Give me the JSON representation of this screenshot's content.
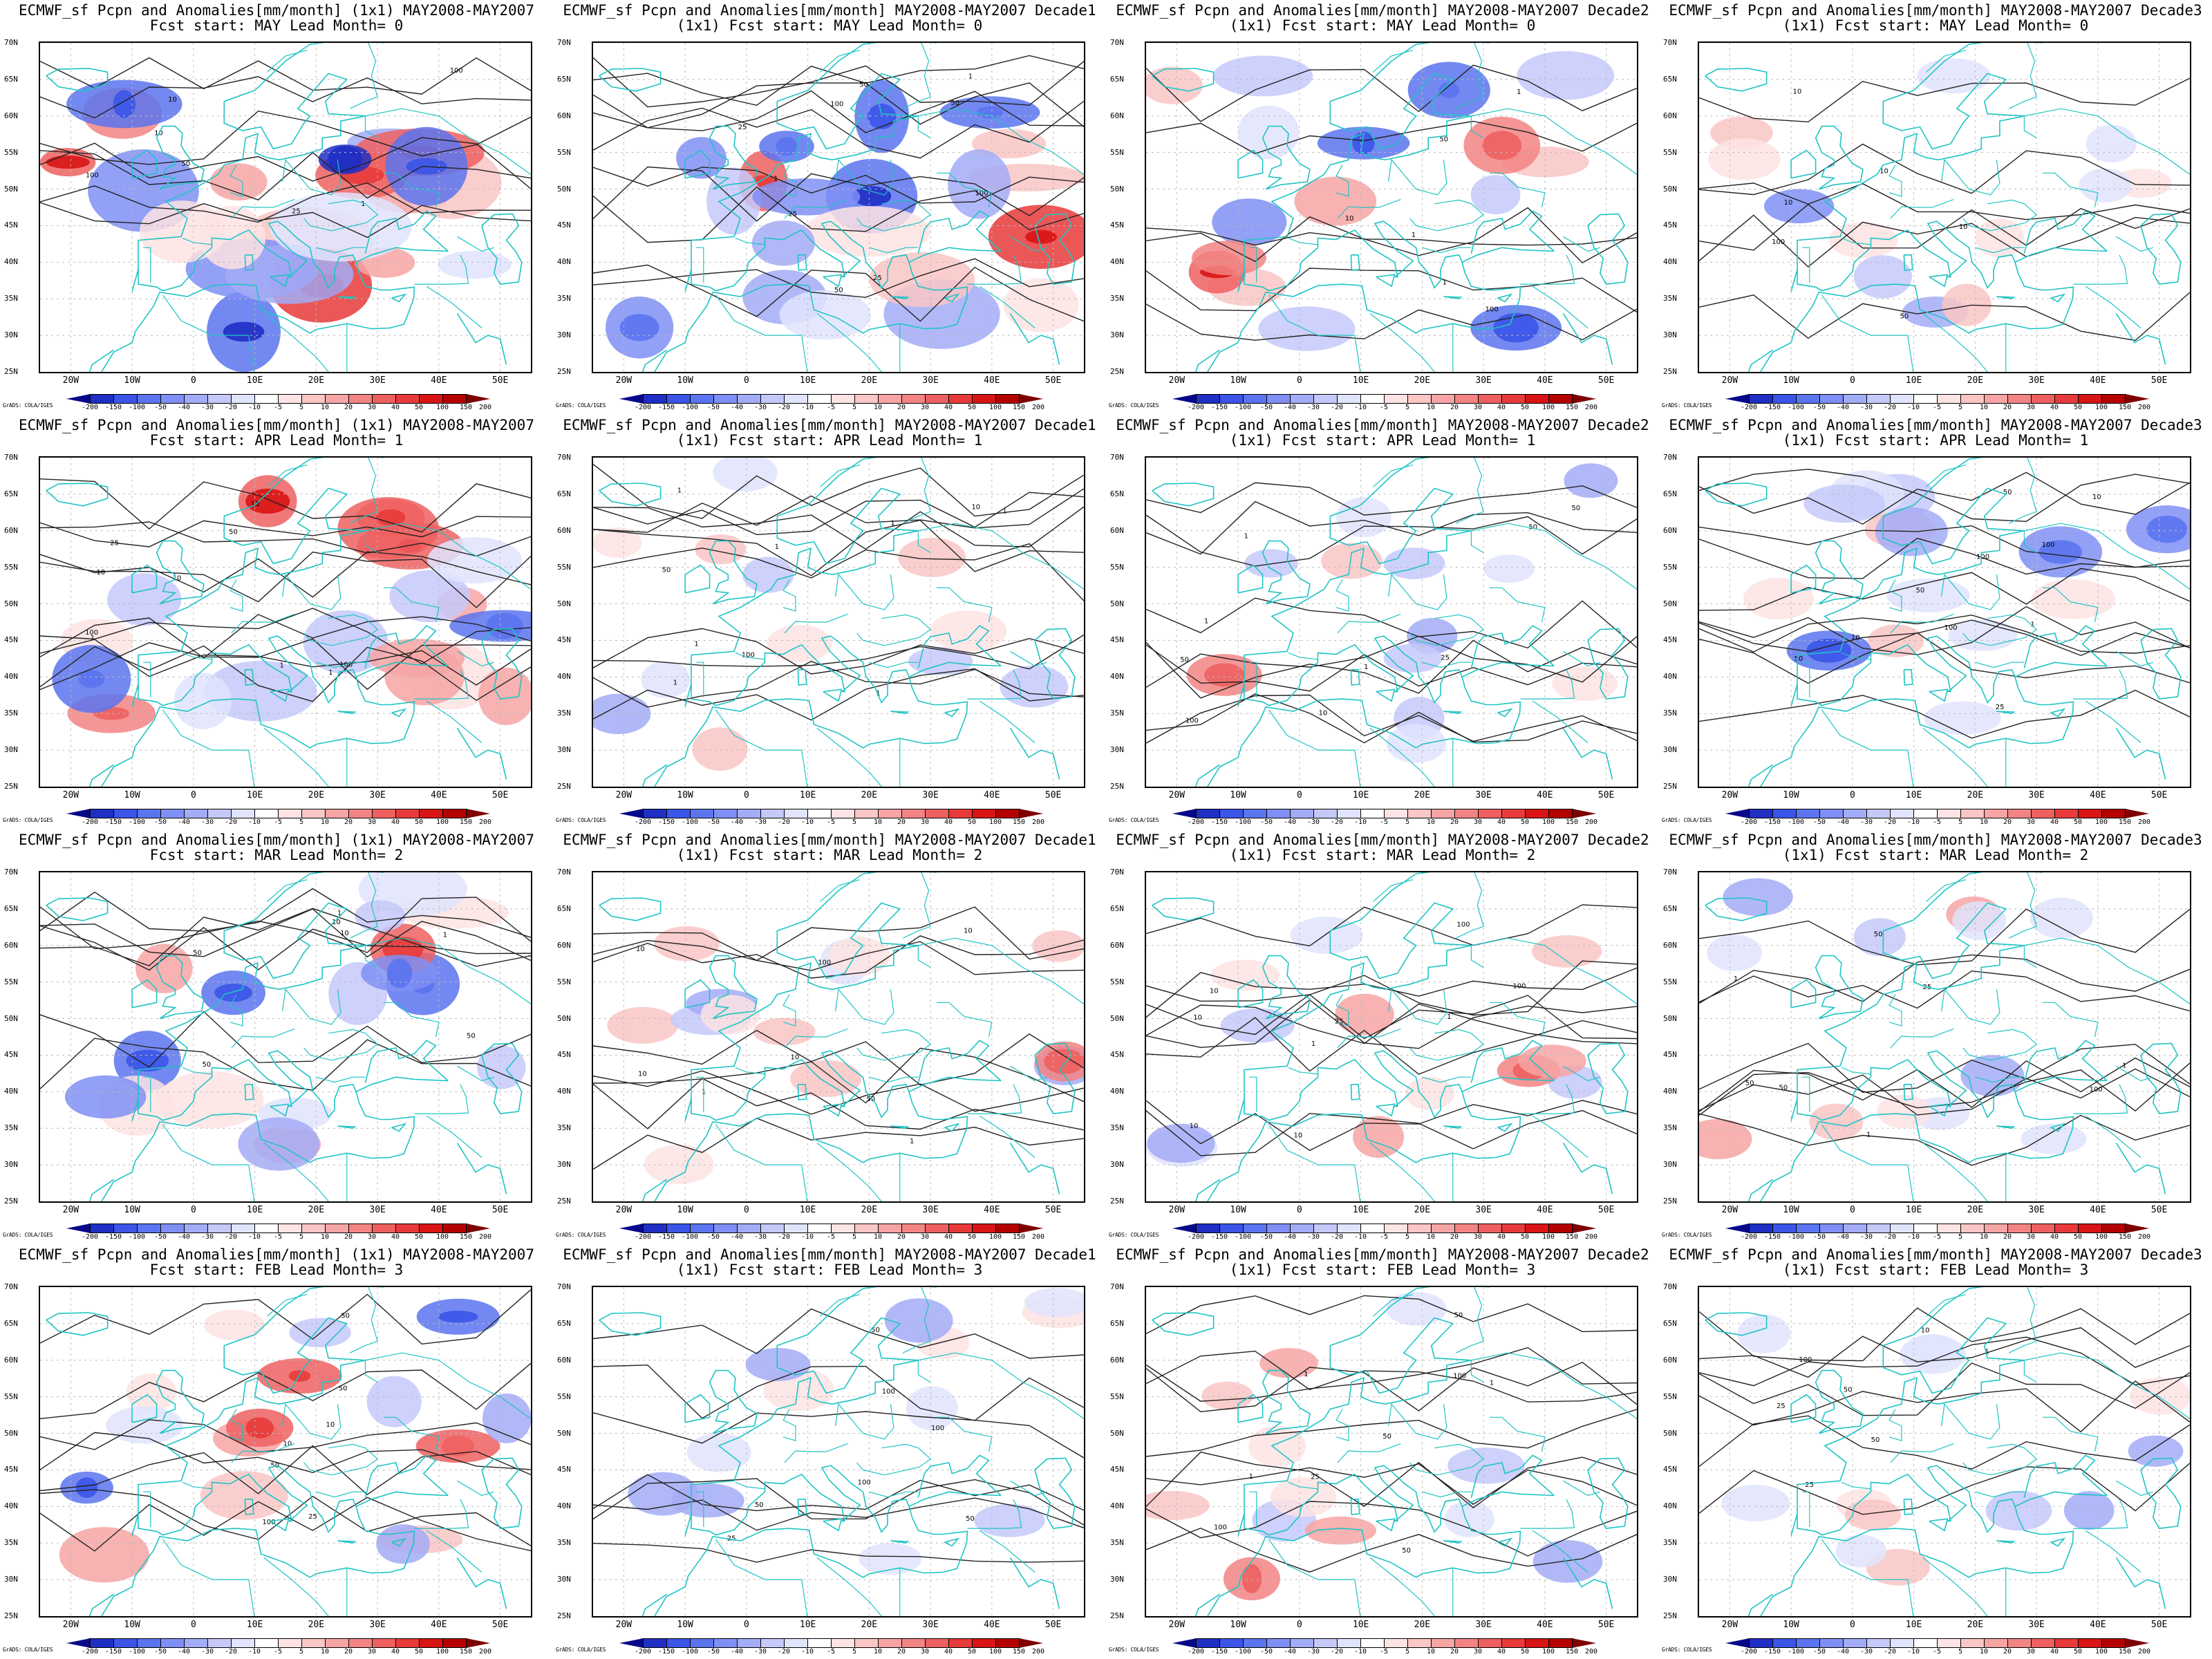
{
  "figure": {
    "credit": "GrADS: COLA/IGES",
    "colorbar_levels": [
      "-200",
      "-150",
      "-100",
      "-50",
      "-40",
      "-30",
      "-20",
      "-10",
      "-5",
      "5",
      "10",
      "20",
      "30",
      "40",
      "50",
      "100",
      "150",
      "200"
    ],
    "colorbar_colors": [
      "#08088a",
      "#1f2fc4",
      "#3b55e8",
      "#5b74ef",
      "#7f8ff5",
      "#a3acf7",
      "#c4c9fa",
      "#e1e4fd",
      "#ffffff",
      "#fde3e3",
      "#fac6c6",
      "#f7a4a4",
      "#f38484",
      "#ee6060",
      "#e83a3a",
      "#d81414",
      "#b50000",
      "#7e0000"
    ],
    "lat_labels": [
      "70N",
      "65N",
      "60N",
      "55N",
      "50N",
      "45N",
      "40N",
      "35N",
      "30N",
      "25N"
    ],
    "lon_labels": [
      "20W",
      "10W",
      "0",
      "10E",
      "20E",
      "30E",
      "40E",
      "50E"
    ],
    "contour_labels": [
      "1",
      "10",
      "25",
      "50",
      "100"
    ]
  },
  "panels": [
    {
      "title1": "ECMWF_sf Pcpn and Anomalies[mm/month] (1x1) MAY2008-MAY2007",
      "title2": "Fcst start: MAY  Lead Month= 0",
      "intensity": 1.0,
      "seed": 1
    },
    {
      "title1": "ECMWF_sf Pcpn and Anomalies[mm/month] MAY2008-MAY2007 Decade1",
      "title2": "(1x1) Fcst start: MAY  Lead Month= 0",
      "intensity": 0.85,
      "seed": 2
    },
    {
      "title1": "ECMWF_sf Pcpn and Anomalies[mm/month] MAY2008-MAY2007 Decade2",
      "title2": "(1x1) Fcst start: MAY  Lead Month= 0",
      "intensity": 0.55,
      "seed": 3
    },
    {
      "title1": "ECMWF_sf Pcpn and Anomalies[mm/month] MAY2008-MAY2007 Decade3",
      "title2": "(1x1) Fcst start: MAY  Lead Month= 0",
      "intensity": 0.3,
      "seed": 4
    },
    {
      "title1": "ECMWF_sf Pcpn and Anomalies[mm/month] (1x1) MAY2008-MAY2007",
      "title2": "Fcst start: APR  Lead Month= 1",
      "intensity": 0.75,
      "seed": 5
    },
    {
      "title1": "ECMWF_sf Pcpn and Anomalies[mm/month] MAY2008-MAY2007 Decade1",
      "title2": "(1x1) Fcst start: APR  Lead Month= 1",
      "intensity": 0.3,
      "seed": 6
    },
    {
      "title1": "ECMWF_sf Pcpn and Anomalies[mm/month] MAY2008-MAY2007 Decade2",
      "title2": "(1x1) Fcst start: APR  Lead Month= 1",
      "intensity": 0.3,
      "seed": 7
    },
    {
      "title1": "ECMWF_sf Pcpn and Anomalies[mm/month] MAY2008-MAY2007 Decade3",
      "title2": "(1x1) Fcst start: APR  Lead Month= 1",
      "intensity": 0.45,
      "seed": 8
    },
    {
      "title1": "ECMWF_sf Pcpn and Anomalies[mm/month] (1x1) MAY2008-MAY2007",
      "title2": "Fcst start: MAR  Lead Month= 2",
      "intensity": 0.65,
      "seed": 9
    },
    {
      "title1": "ECMWF_sf Pcpn and Anomalies[mm/month] MAY2008-MAY2007 Decade1",
      "title2": "(1x1) Fcst start: MAR  Lead Month= 2",
      "intensity": 0.35,
      "seed": 10
    },
    {
      "title1": "ECMWF_sf Pcpn and Anomalies[mm/month] MAY2008-MAY2007 Decade2",
      "title2": "(1x1) Fcst start: MAR  Lead Month= 2",
      "intensity": 0.3,
      "seed": 11
    },
    {
      "title1": "ECMWF_sf Pcpn and Anomalies[mm/month] MAY2008-MAY2007 Decade3",
      "title2": "(1x1) Fcst start: MAR  Lead Month= 2",
      "intensity": 0.25,
      "seed": 12
    },
    {
      "title1": "ECMWF_sf Pcpn and Anomalies[mm/month] (1x1) MAY2008-MAY2007",
      "title2": "Fcst start: FEB  Lead Month= 3",
      "intensity": 0.55,
      "seed": 13
    },
    {
      "title1": "ECMWF_sf Pcpn and Anomalies[mm/month] MAY2008-MAY2007 Decade1",
      "title2": "(1x1) Fcst start: FEB  Lead Month= 3",
      "intensity": 0.3,
      "seed": 14
    },
    {
      "title1": "ECMWF_sf Pcpn and Anomalies[mm/month] MAY2008-MAY2007 Decade2",
      "title2": "(1x1) Fcst start: FEB  Lead Month= 3",
      "intensity": 0.3,
      "seed": 15
    },
    {
      "title1": "ECMWF_sf Pcpn and Anomalies[mm/month] MAY2008-MAY2007 Decade3",
      "title2": "(1x1) Fcst start: FEB  Lead Month= 3",
      "intensity": 0.25,
      "seed": 16
    }
  ]
}
